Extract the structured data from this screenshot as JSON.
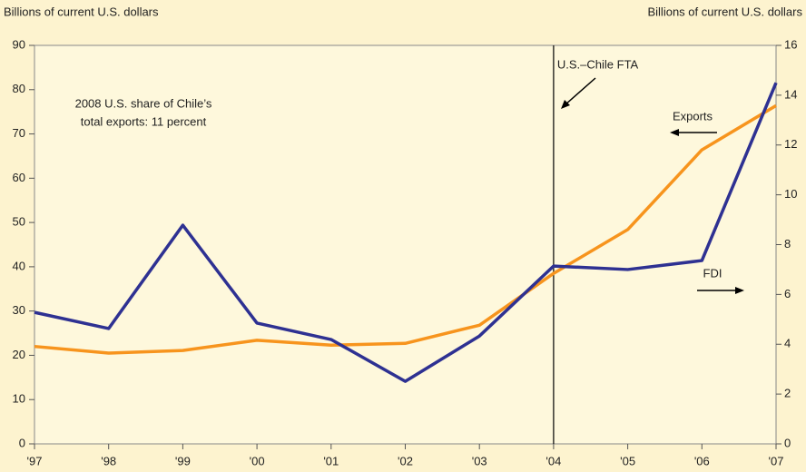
{
  "chart_data": {
    "type": "line",
    "y_label": "Billions of current U.S. dollars",
    "y2_label": "Billions of current U.S. dollars",
    "categories": [
      "'97",
      "'98",
      "'99",
      "'00",
      "'01",
      "'02",
      "'03",
      "'04",
      "'05",
      "'06",
      "'07"
    ],
    "series": [
      {
        "name": "Exports",
        "color": "#f7941d",
        "values": [
          22,
          20.5,
          21.1,
          23.4,
          22.3,
          22.7,
          26.8,
          38.5,
          48.4,
          66.4,
          76.4
        ]
      },
      {
        "name": "FDI",
        "color": "#2e3192",
        "axis": "y2",
        "values": [
          5.28,
          4.63,
          8.78,
          4.85,
          4.19,
          2.51,
          4.33,
          7.14,
          7.0,
          7.36,
          14.5
        ]
      }
    ],
    "ylim": [
      0,
      90
    ],
    "yticks": [
      0,
      10,
      20,
      30,
      40,
      50,
      60,
      70,
      80,
      90
    ],
    "y2lim": [
      0,
      16
    ],
    "y2ticks": [
      0,
      2,
      4,
      6,
      8,
      10,
      12,
      14,
      16
    ],
    "vline": {
      "x": "'04",
      "label": "U.S.–Chile FTA"
    },
    "annotations": [
      "2008 U.S. share of Chile’s",
      "total exports: 11 percent"
    ],
    "grid": false
  }
}
